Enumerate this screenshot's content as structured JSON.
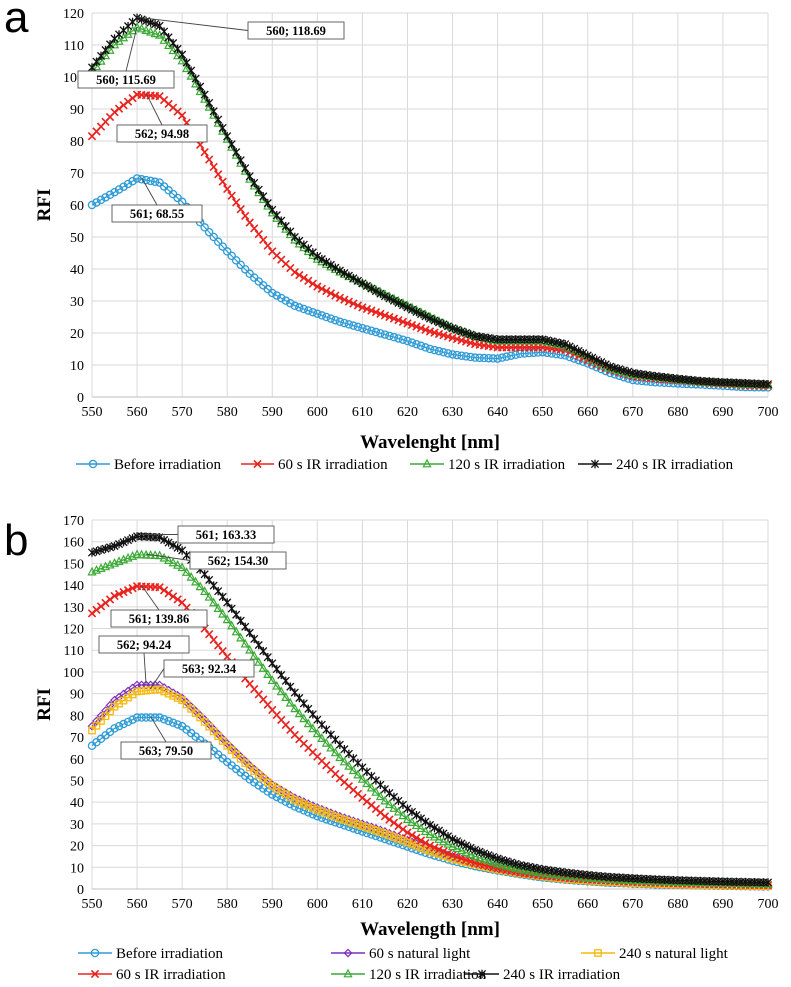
{
  "chart_data": [
    {
      "panel": "a",
      "type": "line",
      "xlabel": "Wavelenght [nm]",
      "ylabel": "RFI",
      "xlim": [
        550,
        700
      ],
      "ylim": [
        0,
        120
      ],
      "xticks": [
        550,
        560,
        570,
        580,
        590,
        600,
        610,
        620,
        630,
        640,
        650,
        660,
        670,
        680,
        690,
        700
      ],
      "yticks": [
        0,
        10,
        20,
        30,
        40,
        50,
        60,
        70,
        80,
        90,
        100,
        110,
        120
      ],
      "grid": true,
      "legend_position": "bottom",
      "x": [
        550,
        555,
        560,
        565,
        570,
        575,
        580,
        585,
        590,
        595,
        600,
        605,
        610,
        615,
        620,
        625,
        630,
        635,
        640,
        645,
        650,
        655,
        660,
        665,
        670,
        675,
        680,
        685,
        690,
        695,
        700
      ],
      "series": [
        {
          "name": "Before irradiation",
          "color": "#2E9BD6",
          "marker": "circle",
          "values": [
            60,
            64,
            68.3,
            67,
            61,
            53,
            45.5,
            38.5,
            32.5,
            28.5,
            26,
            23.5,
            21.5,
            19.5,
            17.5,
            15,
            13.3,
            12.3,
            12,
            13.5,
            14,
            13,
            10.5,
            7.5,
            5.3,
            4.6,
            4.2,
            3.9,
            3.5,
            3.1,
            3
          ]
        },
        {
          "name": "60 s IR irradiation",
          "color": "#E8231E",
          "marker": "x",
          "values": [
            81.5,
            89,
            94.5,
            94,
            88,
            76.5,
            65,
            54.5,
            45.5,
            39,
            34.5,
            31,
            28,
            25.5,
            23,
            20.5,
            18.5,
            16.5,
            15.5,
            15.5,
            15.5,
            14.7,
            11.5,
            8.5,
            6.5,
            5.7,
            5.2,
            4.6,
            4.1,
            3.7,
            3.5
          ]
        },
        {
          "name": "120 s IR irradiation",
          "color": "#3BAA35",
          "marker": "triangle",
          "values": [
            101.5,
            110,
            115.5,
            113,
            105,
            93,
            80.5,
            68,
            57.5,
            49,
            43,
            39,
            35.5,
            32,
            28.5,
            25,
            21.5,
            19,
            17.5,
            17.5,
            17.5,
            16,
            12.5,
            9,
            7,
            6.2,
            5.4,
            4.7,
            4.3,
            3.9,
            3.7
          ]
        },
        {
          "name": "240 s IR irradiation",
          "color": "#111111",
          "marker": "star",
          "values": [
            103,
            112,
            118.5,
            116,
            107,
            94.5,
            81.5,
            69,
            58.5,
            50,
            44,
            39.5,
            35.5,
            31.5,
            28,
            24.5,
            21.5,
            19,
            18,
            18,
            18,
            16.5,
            13,
            9.5,
            7.5,
            6.5,
            5.7,
            5,
            4.6,
            4.3,
            4
          ]
        }
      ],
      "annotations": [
        {
          "label": "560; 118.69",
          "x": 560,
          "y": 118.69
        },
        {
          "label": "560; 115.69",
          "x": 560,
          "y": 115.69
        },
        {
          "label": "562; 94.98",
          "x": 562,
          "y": 94.98
        },
        {
          "label": "561; 68.55",
          "x": 561,
          "y": 68.55
        }
      ]
    },
    {
      "panel": "b",
      "type": "line",
      "xlabel": "Wavelength [nm]",
      "ylabel": "RFI",
      "xlim": [
        550,
        700
      ],
      "ylim": [
        0,
        170
      ],
      "xticks": [
        550,
        560,
        570,
        580,
        590,
        600,
        610,
        620,
        630,
        640,
        650,
        660,
        670,
        680,
        690,
        700
      ],
      "yticks": [
        0,
        10,
        20,
        30,
        40,
        50,
        60,
        70,
        80,
        90,
        100,
        110,
        120,
        130,
        140,
        150,
        160,
        170
      ],
      "grid": true,
      "legend_position": "bottom",
      "x": [
        550,
        555,
        560,
        565,
        570,
        575,
        580,
        585,
        590,
        595,
        600,
        605,
        610,
        615,
        620,
        625,
        630,
        635,
        640,
        645,
        650,
        655,
        660,
        665,
        670,
        675,
        680,
        685,
        690,
        695,
        700
      ],
      "series": [
        {
          "name": "Before irradiation",
          "color": "#2E9BD6",
          "marker": "circle",
          "values": [
            66,
            74,
            79,
            79,
            75,
            67,
            58.5,
            50.5,
            43.5,
            38,
            33.5,
            30,
            26.5,
            23,
            19.5,
            16,
            13,
            10.5,
            8.5,
            6.8,
            5.3,
            4.3,
            3.5,
            2.9,
            2.5,
            2.1,
            1.9,
            1.7,
            1.5,
            1.3,
            1.2
          ]
        },
        {
          "name": "60 s natural light",
          "color": "#7B2FBE",
          "marker": "diamond",
          "values": [
            75,
            87,
            94,
            94,
            88,
            78,
            67,
            57,
            48,
            42,
            37.5,
            33.5,
            30,
            26.5,
            22.5,
            18.5,
            15,
            12,
            9.5,
            7.5,
            6,
            4.8,
            3.9,
            3.2,
            2.7,
            2.3,
            2,
            1.8,
            1.6,
            1.4,
            1.3
          ]
        },
        {
          "name": "240 s natural light",
          "color": "#F5B90F",
          "marker": "square",
          "values": [
            73,
            84,
            91,
            92,
            87,
            77,
            66,
            56,
            47.5,
            41,
            36.5,
            32.5,
            29,
            25.5,
            21.5,
            17.5,
            14,
            11.3,
            9,
            7.2,
            5.8,
            4.6,
            3.8,
            3.2,
            2.7,
            2.3,
            2,
            1.8,
            1.6,
            1.4,
            1.3
          ]
        },
        {
          "name": "60 s IR irradiation",
          "color": "#E8231E",
          "marker": "x",
          "values": [
            127,
            135,
            139.5,
            139,
            132,
            120,
            107,
            94.5,
            82.5,
            71,
            61,
            51,
            42,
            33.5,
            26,
            20,
            15.5,
            12,
            9.5,
            7.5,
            6.2,
            5.2,
            4.4,
            3.8,
            3.3,
            2.9,
            2.6,
            2.3,
            2.1,
            1.9,
            1.8
          ]
        },
        {
          "name": "120 s IR irradiation",
          "color": "#3BAA35",
          "marker": "triangle",
          "values": [
            146,
            150,
            154,
            153.5,
            148,
            137,
            124,
            110,
            96,
            83,
            71.5,
            60.5,
            50.5,
            40.5,
            32,
            25,
            19.5,
            15,
            11.5,
            9,
            7.2,
            6,
            5,
            4.3,
            3.8,
            3.4,
            3.1,
            2.8,
            2.6,
            2.4,
            2.2
          ]
        },
        {
          "name": "240 s IR irradiation",
          "color": "#111111",
          "marker": "star",
          "values": [
            155,
            158,
            162.5,
            162,
            156,
            145,
            132,
            118,
            104,
            90.5,
            78,
            66.5,
            56,
            46,
            37,
            29.5,
            23,
            18,
            14,
            11,
            9,
            7.6,
            6.4,
            5.5,
            4.9,
            4.4,
            4,
            3.7,
            3.4,
            3.2,
            3
          ]
        }
      ],
      "annotations": [
        {
          "label": "561; 163.33",
          "x": 561,
          "y": 163.33
        },
        {
          "label": "562; 154.30",
          "x": 562,
          "y": 154.3
        },
        {
          "label": "561; 139.86",
          "x": 561,
          "y": 139.86
        },
        {
          "label": "562; 94.24",
          "x": 562,
          "y": 94.24
        },
        {
          "label": "563; 92.34",
          "x": 563,
          "y": 92.34
        },
        {
          "label": "563; 79.50",
          "x": 563,
          "y": 79.5
        }
      ]
    }
  ]
}
